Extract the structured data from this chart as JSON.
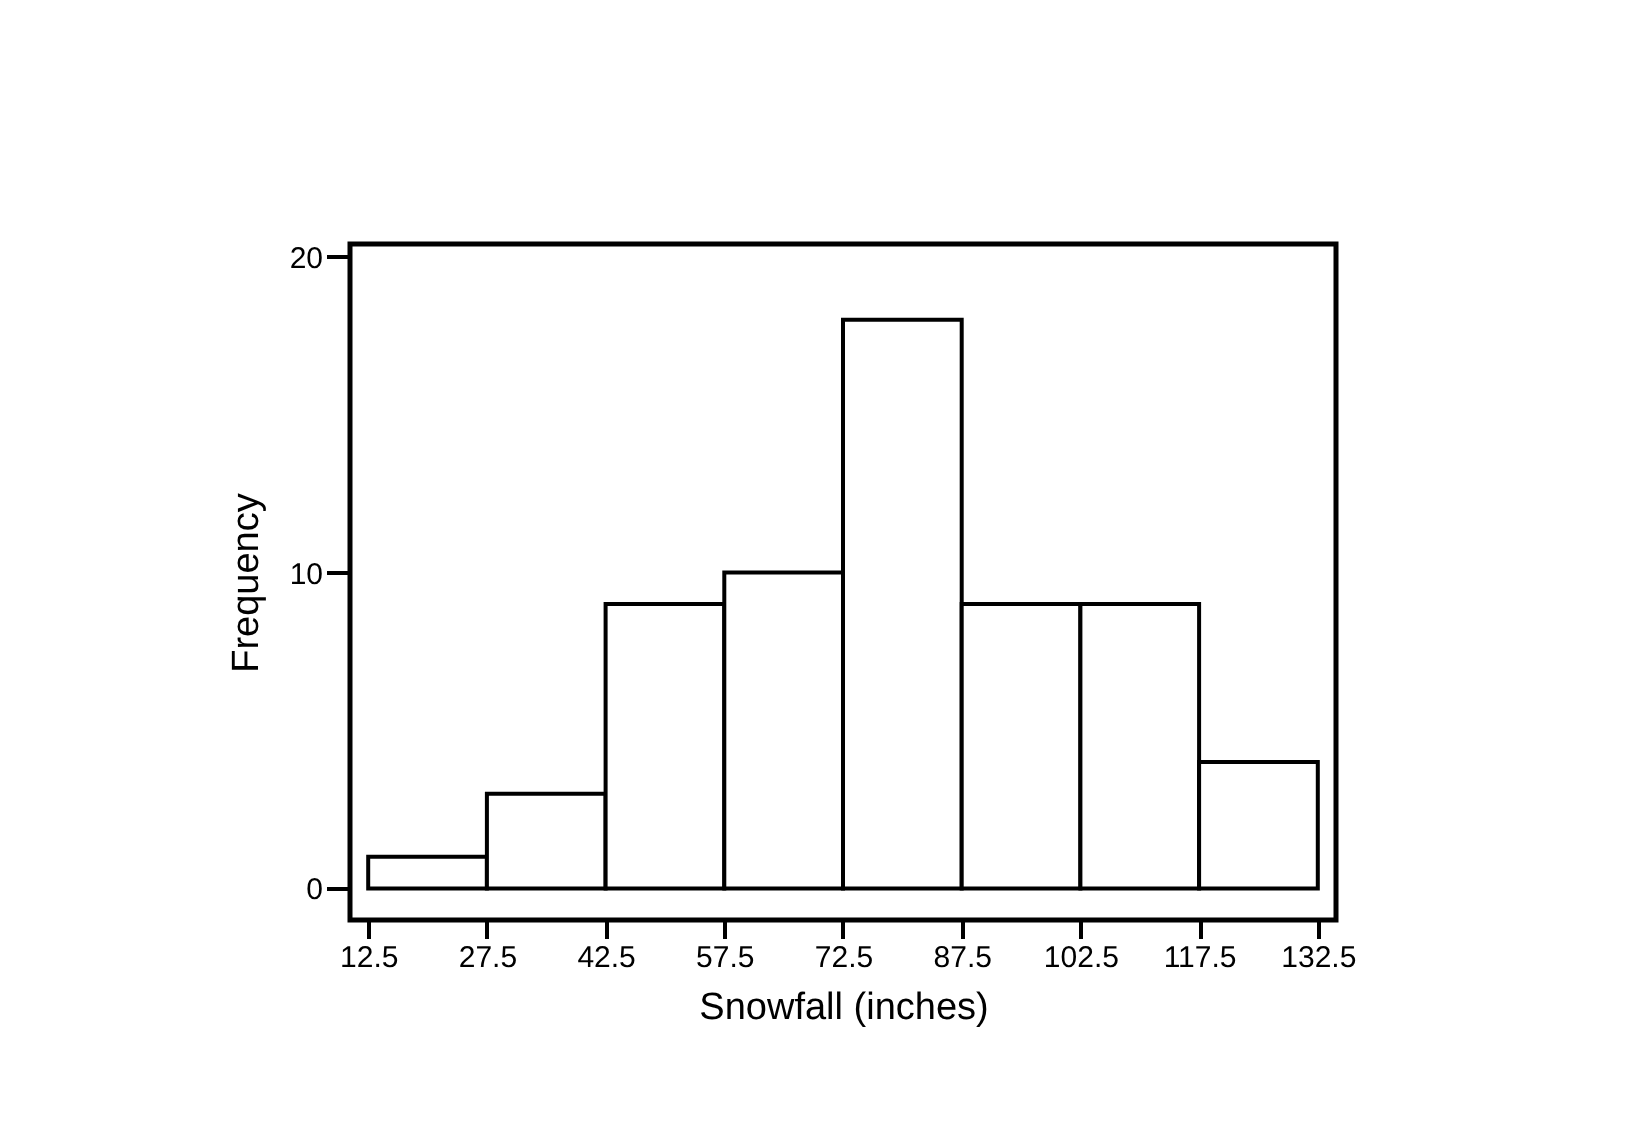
{
  "chart_data": {
    "type": "histogram",
    "xlabel": "Snowfall (inches)",
    "ylabel": "Frequency",
    "bins": [
      12.5,
      27.5,
      42.5,
      57.5,
      72.5,
      87.5,
      102.5,
      117.5,
      132.5
    ],
    "values": [
      1,
      3,
      9,
      10,
      18,
      9,
      9,
      4
    ],
    "color": "#ffffff",
    "xlim": [
      10.2,
      134.8
    ],
    "xticks": [
      12.5,
      27.5,
      42.5,
      57.5,
      72.5,
      87.5,
      102.5,
      117.5,
      132.5
    ],
    "ylim": [
      -1,
      20.4
    ],
    "yticks": [
      0,
      10,
      20
    ],
    "grid": false
  }
}
